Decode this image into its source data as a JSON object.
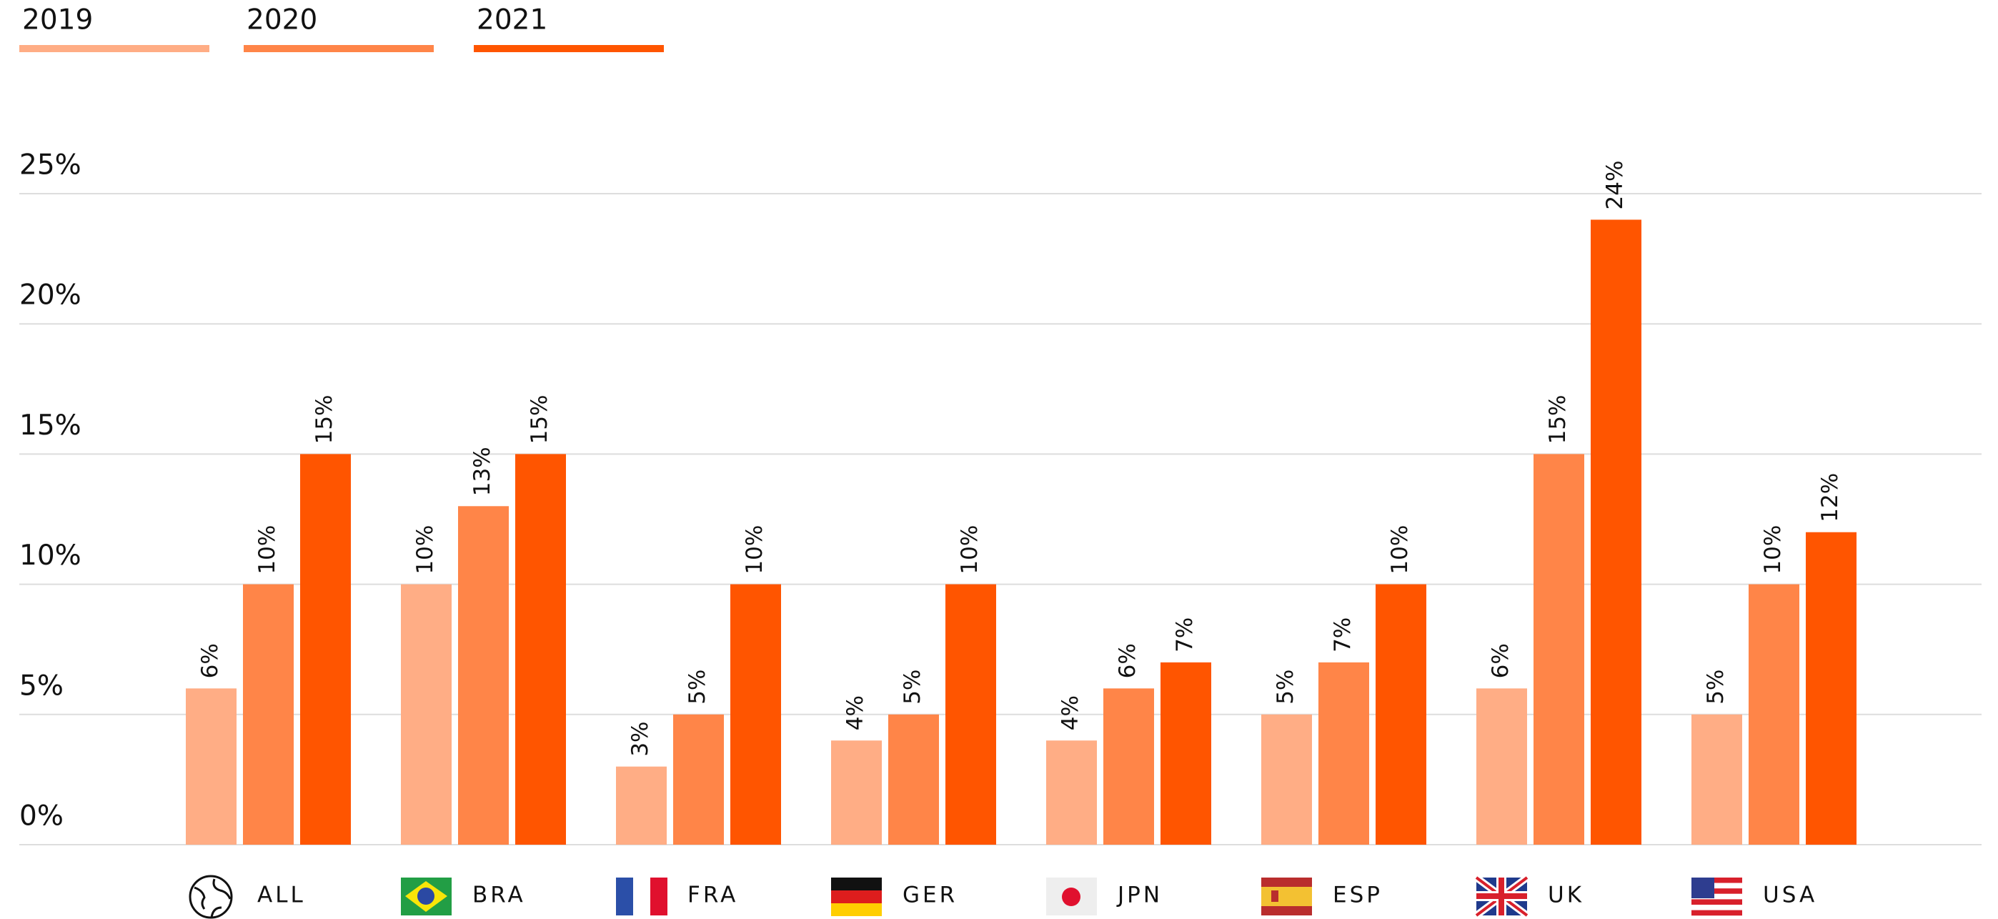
{
  "chart_data": {
    "type": "bar",
    "categories": [
      "ALL",
      "BRA",
      "FRA",
      "GER",
      "JPN",
      "ESP",
      "UK",
      "USA"
    ],
    "series": [
      {
        "name": "2019",
        "color": "#ffad85",
        "values": [
          6,
          10,
          3,
          4,
          4,
          5,
          6,
          5
        ],
        "value_labels": [
          "6%",
          "10%",
          "3%",
          "4%",
          "4%",
          "5%",
          "6%",
          "5%"
        ]
      },
      {
        "name": "2020",
        "color": "#ff8548",
        "values": [
          10,
          13,
          5,
          5,
          6,
          7,
          15,
          10
        ],
        "value_labels": [
          "10%",
          "13%",
          "5%",
          "5%",
          "6%",
          "7%",
          "15%",
          "10%"
        ]
      },
      {
        "name": "2021",
        "color": "#ff5500",
        "values": [
          15,
          15,
          10,
          10,
          7,
          10,
          24,
          12
        ],
        "value_labels": [
          "15%",
          "15%",
          "10%",
          "10%",
          "7%",
          "10%",
          "24%",
          "12%"
        ]
      }
    ],
    "ylim": [
      0,
      25
    ],
    "yticks": [
      {
        "value": 0,
        "label": "0%"
      },
      {
        "value": 5,
        "label": "5%"
      },
      {
        "value": 10,
        "label": "10%"
      },
      {
        "value": 15,
        "label": "15%"
      },
      {
        "value": 20,
        "label": "20%"
      },
      {
        "value": 25,
        "label": "25%"
      }
    ],
    "grid": true,
    "legend": "top-left"
  }
}
